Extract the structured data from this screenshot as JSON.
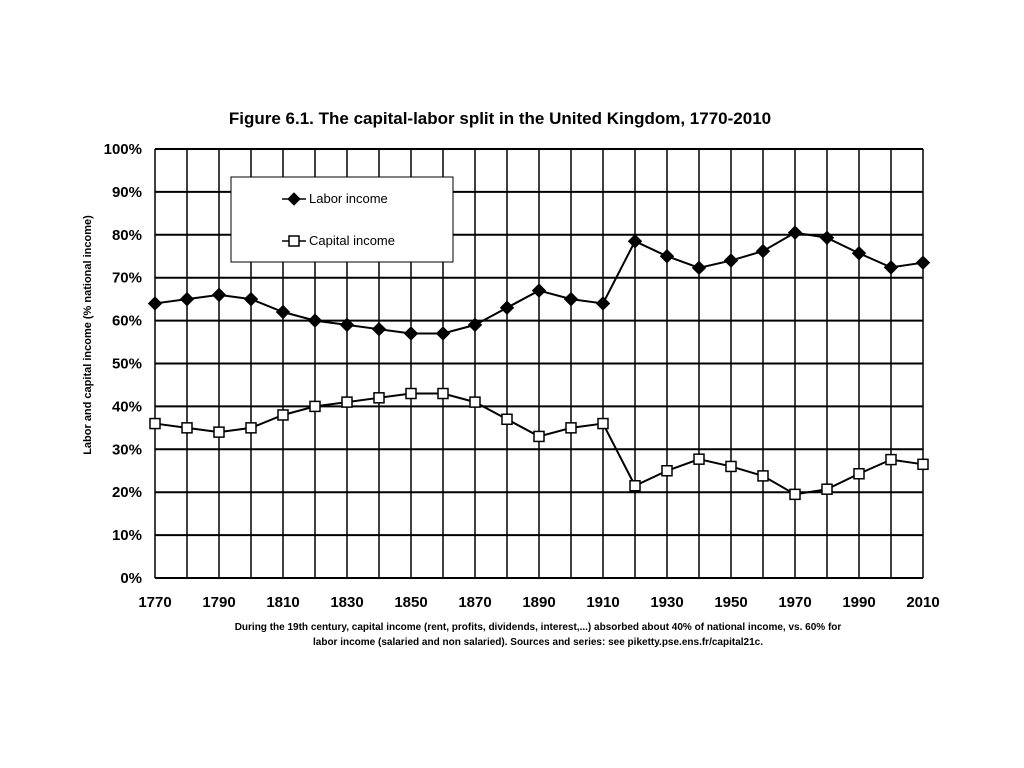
{
  "chart_data": {
    "type": "line",
    "title": "Figure 6.1. The capital-labor split in the United Kingdom, 1770-2010",
    "ylabel": "Labor and capital income (% national income)",
    "xlabel": "",
    "x": [
      1770,
      1780,
      1790,
      1800,
      1810,
      1820,
      1830,
      1840,
      1850,
      1860,
      1870,
      1880,
      1890,
      1900,
      1910,
      1920,
      1930,
      1940,
      1950,
      1960,
      1970,
      1980,
      1990,
      2000,
      2010
    ],
    "xlim": [
      1770,
      2010
    ],
    "ylim": [
      0,
      100
    ],
    "x_ticks": [
      "1770",
      "1790",
      "1810",
      "1830",
      "1850",
      "1870",
      "1890",
      "1910",
      "1930",
      "1950",
      "1970",
      "1990",
      "2010"
    ],
    "y_ticks": [
      "0%",
      "10%",
      "20%",
      "30%",
      "40%",
      "50%",
      "60%",
      "70%",
      "80%",
      "90%",
      "100%"
    ],
    "grid": true,
    "legend_position": "top-left",
    "series": [
      {
        "name": "Labor income",
        "marker": "filled-diamond",
        "values": [
          64,
          65,
          66,
          65,
          62,
          60,
          59,
          58,
          57,
          57,
          59,
          63,
          67,
          65,
          64,
          78.5,
          75,
          72.3,
          74,
          76.2,
          80.5,
          79.3,
          75.7,
          72.4,
          73.5
        ]
      },
      {
        "name": "Capital income",
        "marker": "open-square",
        "values": [
          36,
          35,
          34,
          35,
          38,
          40,
          41,
          42,
          43,
          43,
          41,
          37,
          33,
          35,
          36,
          21.5,
          25,
          27.7,
          26,
          23.8,
          19.5,
          20.7,
          24.3,
          27.6,
          26.5
        ]
      }
    ],
    "caption": [
      "During the 19th century, capital income (rent, profits, dividends, interest,...) absorbed about 40% of national income, vs. 60% for",
      "labor income (salaried and non salaried). Sources and series: see piketty.pse.ens.fr/capital21c."
    ]
  }
}
